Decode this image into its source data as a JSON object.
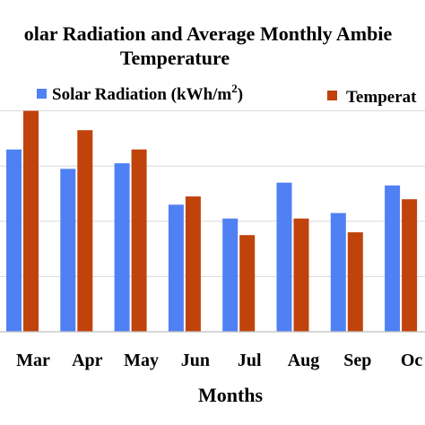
{
  "chart_data": {
    "type": "bar",
    "title_line1": "olar Radiation and Average Monthly Ambie",
    "title_line2": "Temperature",
    "xlabel": "Months",
    "ylabel": "",
    "categories": [
      "Mar",
      "Apr",
      "May",
      "Jun",
      "Jul",
      "Aug",
      "Sep",
      "Oc"
    ],
    "series": [
      {
        "name": "Solar Radiation (kWh/m",
        "name_sup": "2",
        "name_suffix": ")",
        "color": "#4f81f5",
        "values": [
          6.6,
          5.9,
          6.1,
          4.6,
          4.1,
          5.4,
          4.3,
          5.3
        ]
      },
      {
        "name": "Temperat",
        "color": "#c0430c",
        "values": [
          8.0,
          7.3,
          6.6,
          4.9,
          3.5,
          4.1,
          3.6,
          4.8
        ]
      }
    ],
    "ylim": [
      0,
      10
    ],
    "grid": true,
    "legend_position": "top"
  }
}
